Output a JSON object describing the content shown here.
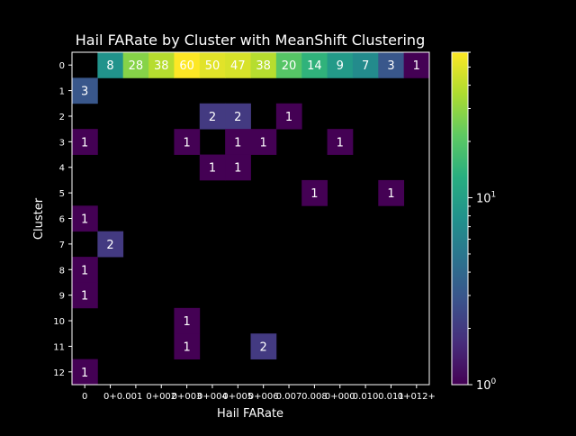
{
  "chart_data": {
    "type": "heatmap",
    "title": "Hail FARate by Cluster with MeanShift Clustering",
    "xlabel": "Hail FARate",
    "ylabel": "Cluster",
    "x_categories": [
      "0",
      "0+",
      "0.001",
      "0+002",
      "0+003",
      "0+004",
      "0+005",
      "0+006",
      "0.007",
      "0.008",
      "0+000",
      "0.010",
      "0.011",
      "0+012+"
    ],
    "x_tick_labels_as_rendered": [
      "0",
      "0+0.001",
      "0+002",
      "0+003",
      "0+004",
      "0+005",
      "0+006",
      "0.007",
      "0.008",
      "0+000",
      "0.010",
      "0.011",
      "0+012+"
    ],
    "y_categories": [
      "0",
      "1",
      "2",
      "3",
      "4",
      "5",
      "6",
      "7",
      "8",
      "9",
      "10",
      "11",
      "12"
    ],
    "values": [
      [
        null,
        8,
        28,
        38,
        60,
        50,
        47,
        38,
        20,
        14,
        9,
        7,
        3,
        1
      ],
      [
        3,
        null,
        null,
        null,
        null,
        null,
        null,
        null,
        null,
        null,
        null,
        null,
        null,
        null
      ],
      [
        null,
        null,
        null,
        null,
        null,
        2,
        2,
        null,
        1,
        null,
        null,
        null,
        null,
        null
      ],
      [
        1,
        null,
        null,
        null,
        1,
        null,
        1,
        1,
        null,
        null,
        1,
        null,
        null,
        null
      ],
      [
        null,
        null,
        null,
        null,
        null,
        1,
        1,
        null,
        null,
        null,
        null,
        null,
        null,
        null
      ],
      [
        null,
        null,
        null,
        null,
        null,
        null,
        null,
        null,
        null,
        1,
        null,
        null,
        1,
        null
      ],
      [
        1,
        null,
        null,
        null,
        null,
        null,
        null,
        null,
        null,
        null,
        null,
        null,
        null,
        null
      ],
      [
        null,
        2,
        null,
        null,
        null,
        null,
        null,
        null,
        null,
        null,
        null,
        null,
        null,
        null
      ],
      [
        1,
        null,
        null,
        null,
        null,
        null,
        null,
        null,
        null,
        null,
        null,
        null,
        null,
        null
      ],
      [
        1,
        null,
        null,
        null,
        null,
        null,
        null,
        null,
        null,
        null,
        null,
        null,
        null,
        null
      ],
      [
        null,
        null,
        null,
        null,
        1,
        null,
        null,
        null,
        null,
        null,
        null,
        null,
        null,
        null
      ],
      [
        null,
        null,
        null,
        null,
        1,
        null,
        null,
        2,
        null,
        null,
        null,
        null,
        null,
        null
      ],
      [
        1,
        null,
        null,
        null,
        null,
        null,
        null,
        null,
        null,
        null,
        null,
        null,
        null,
        null
      ]
    ],
    "colorbar": {
      "scale": "log",
      "min": 1,
      "max": 60,
      "colormap": "viridis",
      "tick_labels": [
        {
          "base": "10",
          "exp": "0",
          "value": 1
        },
        {
          "base": "10",
          "exp": "1",
          "value": 10
        }
      ]
    },
    "grid": false
  }
}
